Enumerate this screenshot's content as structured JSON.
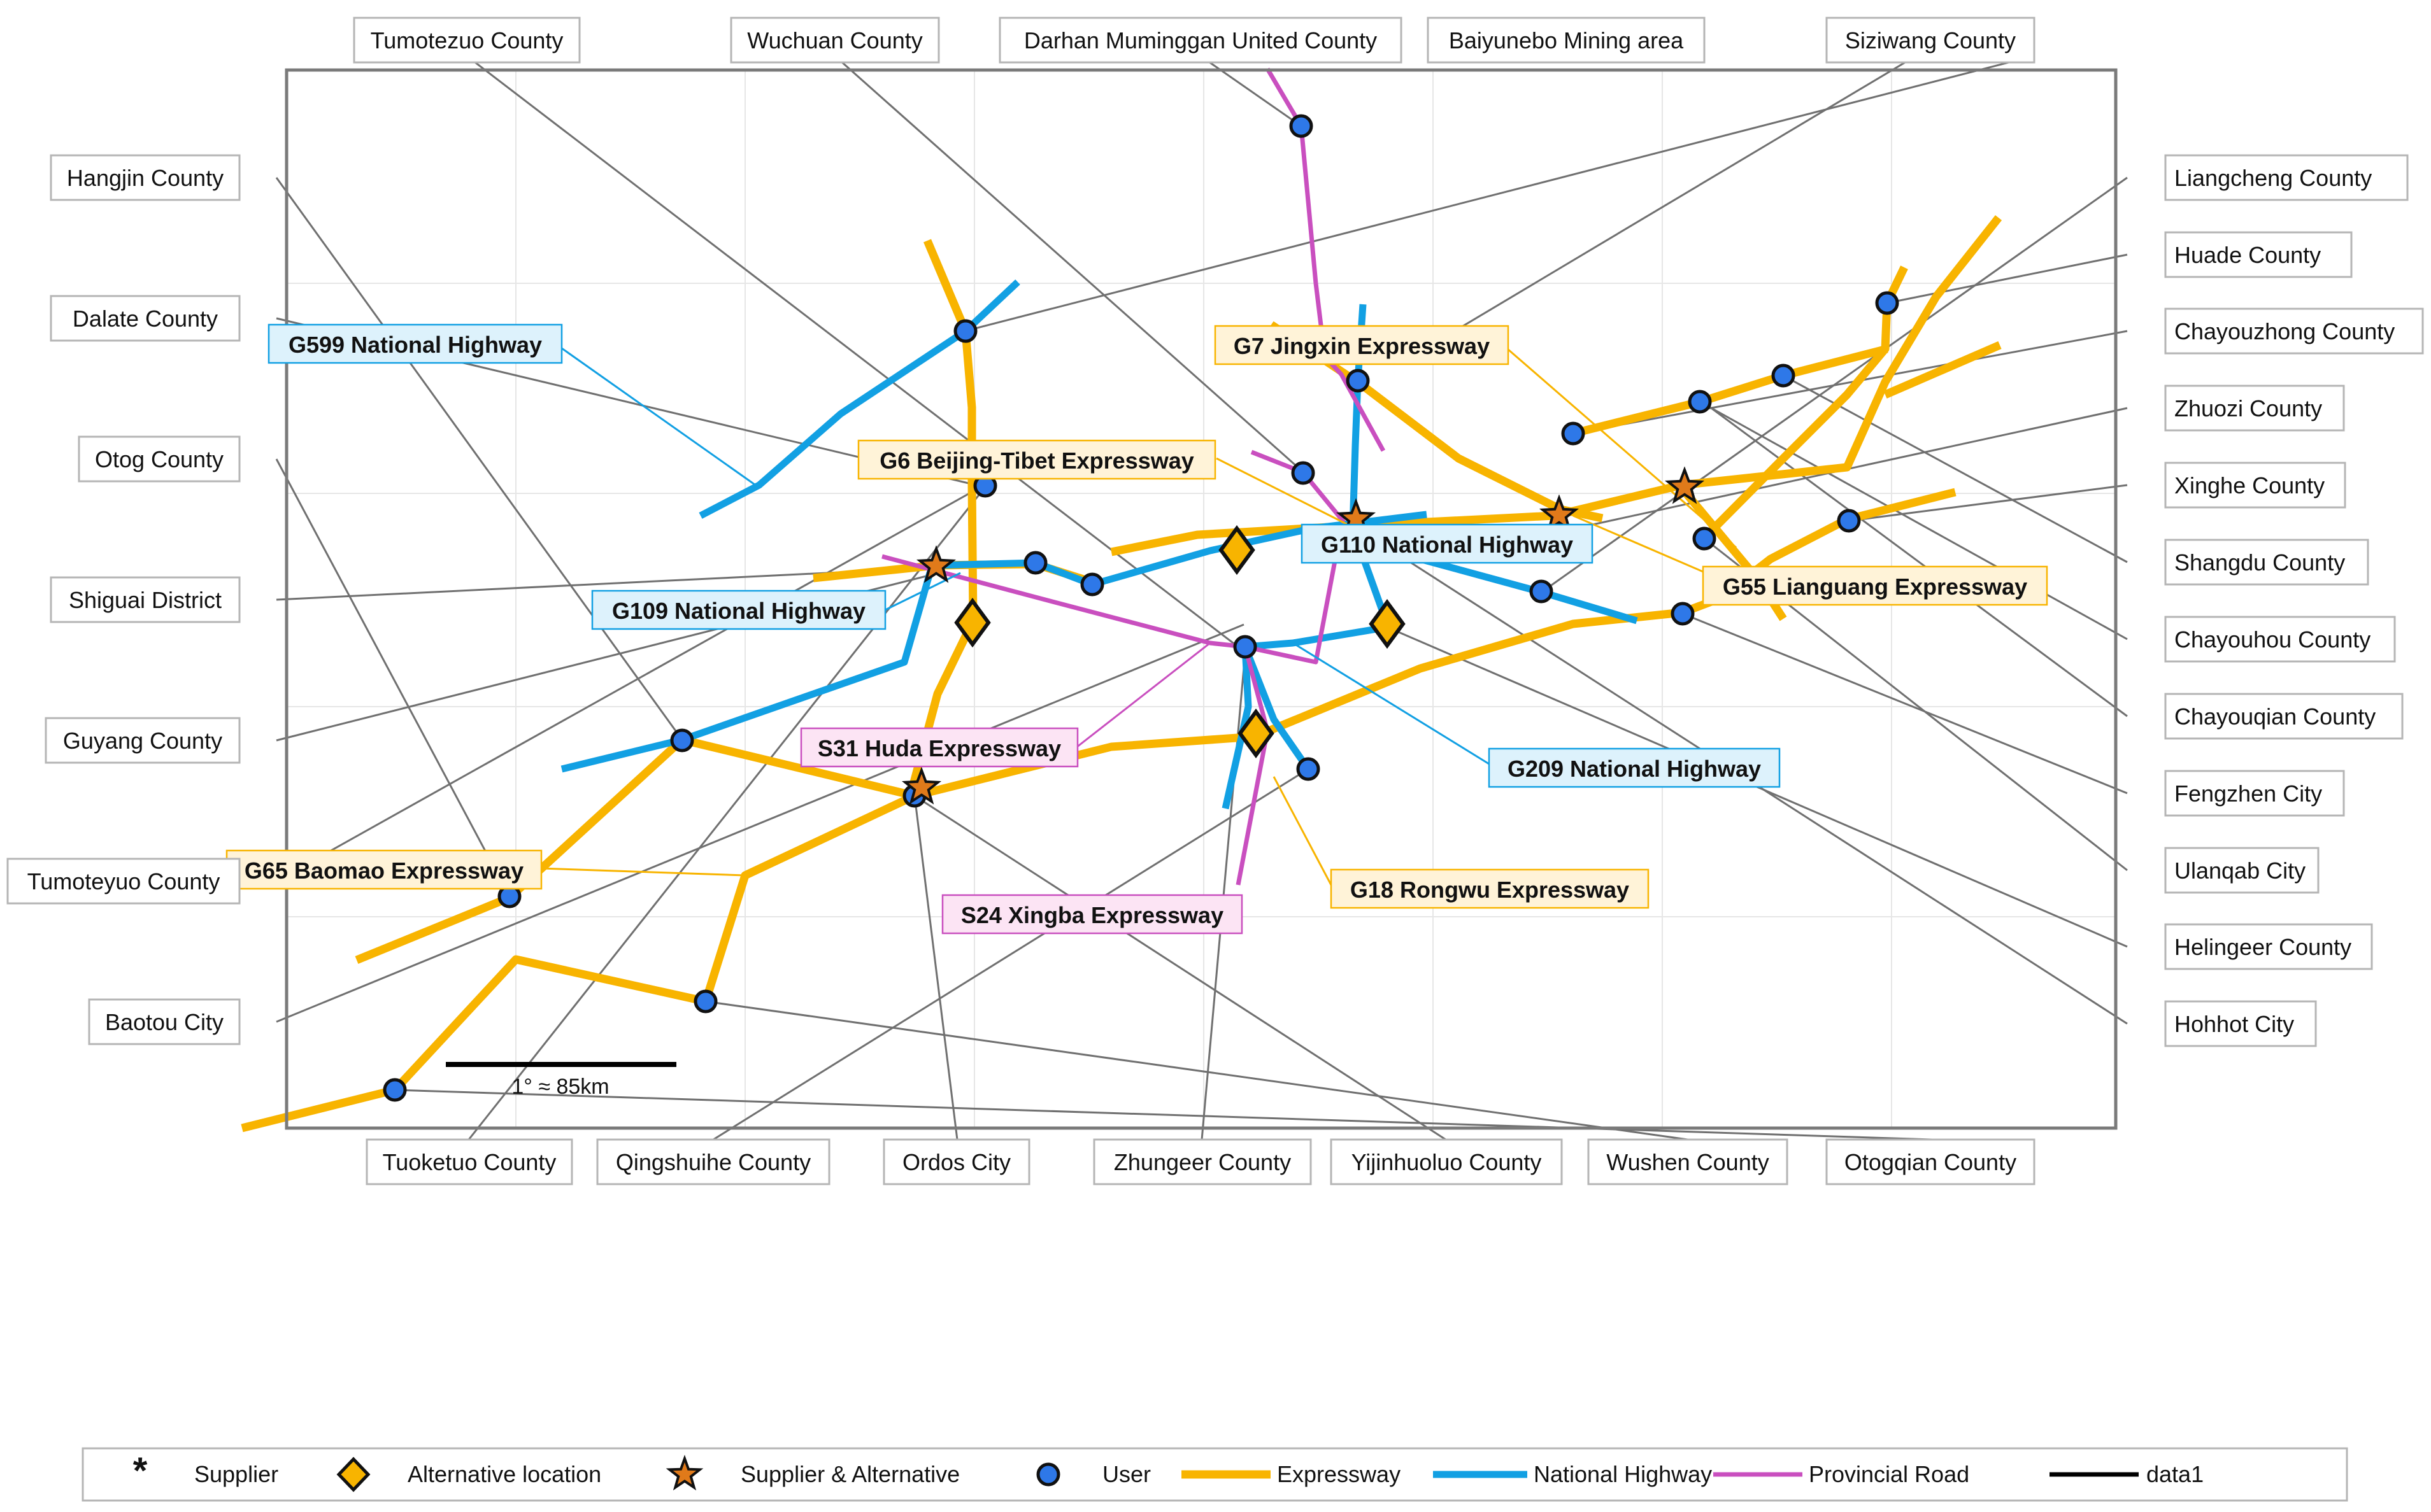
{
  "colors": {
    "expressway": "#F8B400",
    "national_highway": "#12A0E3",
    "provincial_road": "#C94FBF",
    "user_fill": "#2E78E8",
    "leader": "#707070",
    "frame": "#7A7A7A",
    "grid": "#E6E6E6",
    "exp_label_bg": "#FFF3D8",
    "nat_label_bg": "#DDF2FC",
    "prov_label_bg": "#FCE4F4"
  },
  "scale_bar": {
    "label": "1° ≈ 85km"
  },
  "roads": [
    {
      "name": "G6 Beijing-Tibet Expressway",
      "class": "expressway"
    },
    {
      "name": "G7 Jingxin Expressway",
      "class": "expressway"
    },
    {
      "name": "G18 Rongwu Expressway",
      "class": "expressway"
    },
    {
      "name": "G55 Lianguang Expressway",
      "class": "expressway"
    },
    {
      "name": "G65 Baomao Expressway",
      "class": "expressway"
    },
    {
      "name": "G109 National Highway",
      "class": "national_highway"
    },
    {
      "name": "G110 National Highway",
      "class": "national_highway"
    },
    {
      "name": "G209 National Highway",
      "class": "national_highway"
    },
    {
      "name": "G599 National Highway",
      "class": "national_highway"
    },
    {
      "name": "S24 Xingba Expressway",
      "class": "provincial_road"
    },
    {
      "name": "S31 Huda Expressway",
      "class": "provincial_road"
    }
  ],
  "places": {
    "top": [
      "Tumotezuo County",
      "Wuchuan County",
      "Darhan Muminggan United County",
      "Baiyunebo Mining area",
      "Siziwang County"
    ],
    "left": [
      "Hangjin County",
      "Dalate County",
      "Otog County",
      "Shiguai District",
      "Guyang County",
      "Tumoteyuo County",
      "Baotou City"
    ],
    "right": [
      "Liangcheng County",
      "Huade County",
      "Chayouzhong County",
      "Zhuozi County",
      "Xinghe County",
      "Shangdu County",
      "Chayouhou County",
      "Chayouqian County",
      "Fengzhen City",
      "Ulanqab City",
      "Helingeer County",
      "Hohhot City"
    ],
    "bottom": [
      "Tuoketuo County",
      "Qingshuihe County",
      "Ordos City",
      "Zhungeer County",
      "Yijinhuoluo County",
      "Wushen County",
      "Otogqian County"
    ]
  },
  "legend": {
    "supplier": "Supplier",
    "alternative": "Alternative location",
    "supplier_alternative": "Supplier & Alternative",
    "user": "User",
    "expressway": "Expressway",
    "national_highway": "National Highway",
    "provincial_road": "Provincial Road",
    "data1": "data1"
  }
}
